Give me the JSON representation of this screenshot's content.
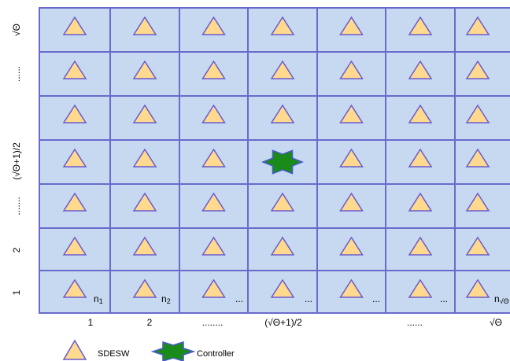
{
  "x_labels": [
    "1",
    "2",
    "........",
    "(√Θ+1)/2",
    "......",
    "",
    "√Θ"
  ],
  "y_labels": [
    "√Θ",
    "......",
    "",
    "(√Θ+1)/2",
    ".......",
    "2",
    "1"
  ],
  "node_labels": [
    {
      "text": "n",
      "sub": "1"
    },
    {
      "text": "n",
      "sub": "2"
    },
    {
      "text": "..."
    },
    {
      "text": "..."
    },
    {
      "text": "..."
    },
    {
      "text": "..."
    },
    {
      "text": "n",
      "sub": "√Θ"
    }
  ],
  "legend": [
    {
      "label": "SDESW"
    },
    {
      "label": "Controller"
    }
  ]
}
